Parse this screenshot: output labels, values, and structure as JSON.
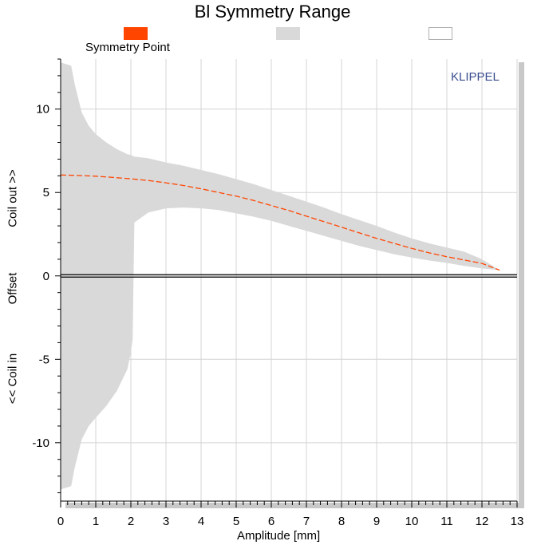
{
  "chart_data": {
    "type": "area",
    "title": "Bl Symmetry Range",
    "xlabel": "Amplitude [mm]",
    "ylabel_parts": [
      "Coil out >>",
      "Offset",
      "<< Coil in"
    ],
    "brand": "KLIPPEL",
    "xlim": [
      0,
      13
    ],
    "ylim": [
      -13.5,
      13
    ],
    "xticks": [
      0,
      1,
      2,
      3,
      4,
      5,
      6,
      7,
      8,
      9,
      10,
      11,
      12,
      13
    ],
    "yticks": [
      -10,
      -5,
      0,
      5,
      10
    ],
    "grid": true,
    "legend": [
      {
        "label": "Symmetry Point",
        "color": "#ff4500",
        "kind": "fill"
      },
      {
        "label": "",
        "color": "#d9d9d9",
        "kind": "fill"
      },
      {
        "label": "",
        "color": "#ffffff",
        "kind": "outline"
      }
    ],
    "symmetry_point": {
      "name": "Symmetry Point",
      "color": "#ff4500",
      "x": [
        0,
        0.5,
        1,
        1.5,
        2,
        2.5,
        3,
        3.5,
        4,
        4.5,
        5,
        5.5,
        6,
        6.5,
        7,
        7.5,
        8,
        8.5,
        9,
        9.5,
        10,
        10.5,
        11,
        11.5,
        12,
        12.5
      ],
      "y": [
        6.05,
        6.02,
        5.98,
        5.9,
        5.82,
        5.72,
        5.58,
        5.42,
        5.22,
        5.0,
        4.78,
        4.52,
        4.22,
        3.92,
        3.58,
        3.25,
        2.92,
        2.58,
        2.25,
        1.95,
        1.65,
        1.38,
        1.15,
        0.95,
        0.75,
        0.35
      ]
    },
    "range_band": {
      "color": "#d9d9d9",
      "x": [
        0,
        0.3,
        0.4,
        0.6,
        0.8,
        1.0,
        1.3,
        1.6,
        1.9,
        2.0,
        2.05,
        2.1,
        2.5,
        3,
        3.5,
        4,
        4.5,
        5,
        5.5,
        6,
        6.5,
        7,
        7.5,
        8,
        8.5,
        9,
        9.5,
        10,
        10.5,
        11,
        11.5,
        12,
        12.5
      ],
      "upper": [
        12.8,
        12.6,
        11.5,
        9.8,
        9.0,
        8.5,
        8.0,
        7.6,
        7.3,
        7.25,
        7.2,
        7.15,
        7.05,
        6.8,
        6.6,
        6.35,
        6.1,
        5.8,
        5.5,
        5.15,
        4.8,
        4.45,
        4.1,
        3.7,
        3.35,
        3.0,
        2.6,
        2.25,
        1.95,
        1.7,
        1.45,
        1.0,
        0.35
      ],
      "lower": [
        -12.8,
        -12.6,
        -11.5,
        -9.8,
        -9.0,
        -8.5,
        -7.8,
        -6.9,
        -5.6,
        -4.6,
        -3.8,
        3.2,
        3.8,
        4.05,
        4.1,
        4.05,
        3.95,
        3.75,
        3.55,
        3.3,
        3.0,
        2.7,
        2.4,
        2.1,
        1.8,
        1.55,
        1.3,
        1.1,
        0.92,
        0.78,
        0.6,
        0.45,
        0.35
      ]
    },
    "zero_line": {
      "y": 0,
      "color": "#000000"
    }
  }
}
